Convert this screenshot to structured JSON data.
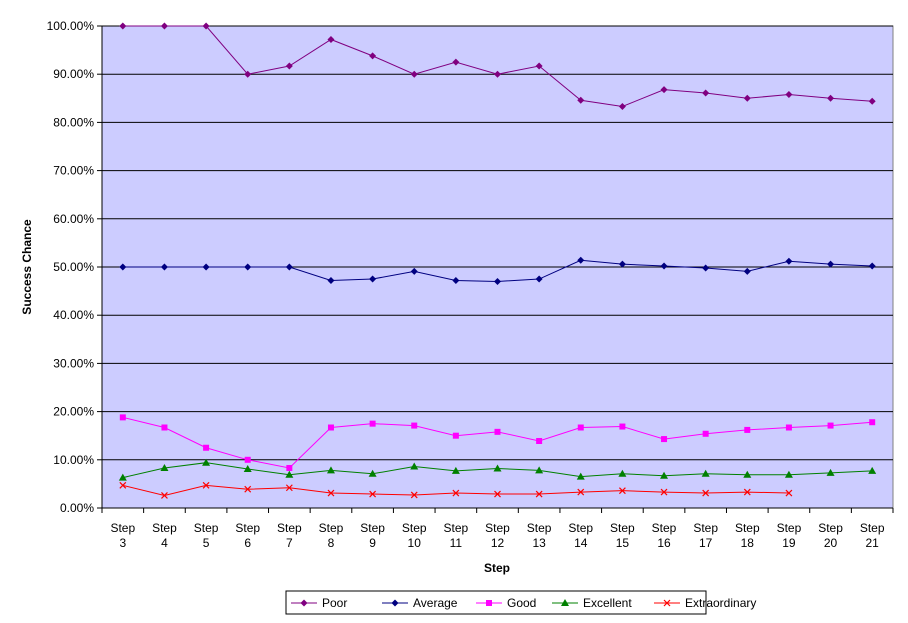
{
  "chart_data": {
    "type": "line",
    "title": "",
    "xlabel": "Step",
    "ylabel": "Success Chance",
    "ylim": [
      0,
      1
    ],
    "y_ticks": [
      0,
      0.1,
      0.2,
      0.3,
      0.4,
      0.5,
      0.6,
      0.7,
      0.8,
      0.9,
      1.0
    ],
    "y_tick_labels": [
      "0.00%",
      "10.00%",
      "20.00%",
      "30.00%",
      "40.00%",
      "50.00%",
      "60.00%",
      "70.00%",
      "80.00%",
      "90.00%",
      "100.00%"
    ],
    "categories": [
      "Step 3",
      "Step 4",
      "Step 5",
      "Step 6",
      "Step 7",
      "Step 8",
      "Step 9",
      "Step 10",
      "Step 11",
      "Step 12",
      "Step 13",
      "Step 14",
      "Step 15",
      "Step 16",
      "Step 17",
      "Step 18",
      "Step 19",
      "Step 20",
      "Step 21"
    ],
    "grid": "horizontal",
    "plot_background": "#ccccff",
    "legend_position": "bottom",
    "series": [
      {
        "name": "Poor",
        "color": "#800080",
        "marker": "diamond",
        "values": [
          1.0,
          1.0,
          1.0,
          0.9,
          0.917,
          0.972,
          0.938,
          0.9,
          0.925,
          0.9,
          0.917,
          0.846,
          0.833,
          0.868,
          0.861,
          0.85,
          0.858,
          0.85,
          0.844
        ]
      },
      {
        "name": "Average",
        "color": "#000080",
        "marker": "diamond",
        "values": [
          0.5,
          0.5,
          0.5,
          0.5,
          0.5,
          0.472,
          0.475,
          0.491,
          0.472,
          0.47,
          0.475,
          0.514,
          0.506,
          0.502,
          0.498,
          0.491,
          0.512,
          0.506,
          0.502
        ]
      },
      {
        "name": "Good",
        "color": "#ff00ff",
        "marker": "square",
        "values": [
          0.188,
          0.167,
          0.125,
          0.1,
          0.083,
          0.167,
          0.175,
          0.171,
          0.15,
          0.158,
          0.139,
          0.167,
          0.169,
          0.143,
          0.154,
          0.162,
          0.167,
          0.171,
          0.178
        ]
      },
      {
        "name": "Excellent",
        "color": "#008000",
        "marker": "triangle",
        "values": [
          0.063,
          0.083,
          0.094,
          0.081,
          0.069,
          0.078,
          0.071,
          0.086,
          0.077,
          0.082,
          0.078,
          0.065,
          0.071,
          0.067,
          0.071,
          0.069,
          0.069,
          0.073,
          0.077
        ]
      },
      {
        "name": "Extraordinary",
        "color": "#ff0000",
        "marker": "x",
        "values": [
          0.047,
          0.026,
          0.047,
          0.039,
          0.042,
          0.031,
          0.029,
          0.027,
          0.031,
          0.029,
          0.029,
          0.033,
          0.036,
          0.033,
          0.031,
          0.033,
          0.031,
          null,
          null
        ]
      }
    ]
  }
}
